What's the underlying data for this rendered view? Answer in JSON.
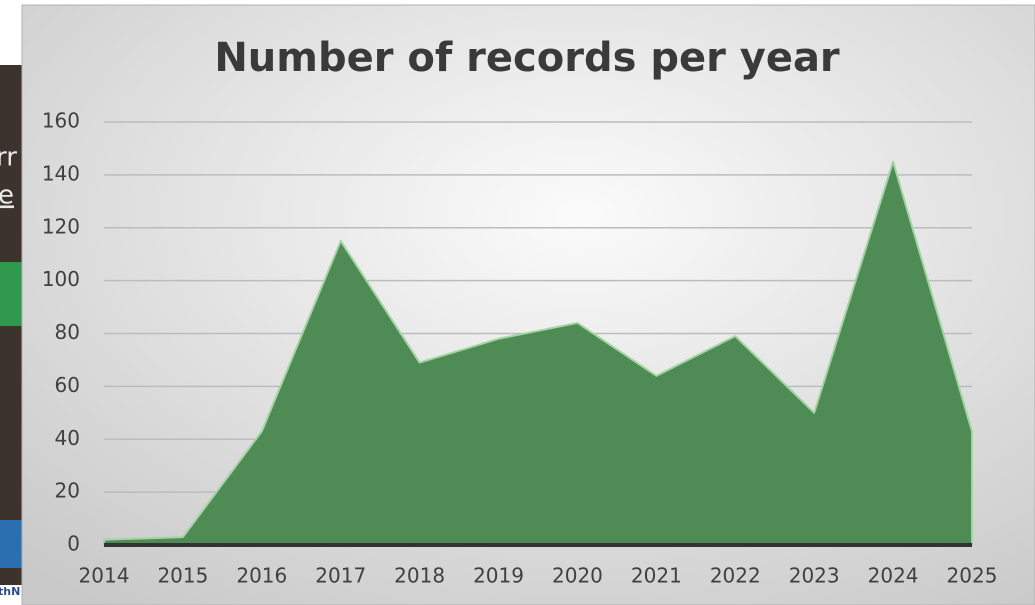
{
  "background": {
    "fragments": [
      "rr",
      "e",
      "thN"
    ]
  },
  "chart_data": {
    "type": "area",
    "title": "Number of records per year",
    "x": [
      2014,
      2015,
      2016,
      2017,
      2018,
      2019,
      2020,
      2021,
      2022,
      2023,
      2024,
      2025
    ],
    "values": [
      2,
      3,
      43,
      115,
      69,
      78,
      84,
      64,
      79,
      50,
      145,
      43
    ],
    "color": "#4e8b55",
    "xlim": [
      2014,
      2025
    ],
    "xticks": [
      2014,
      2015,
      2016,
      2017,
      2018,
      2019,
      2020,
      2021,
      2022,
      2023,
      2024,
      2025
    ],
    "ylim": [
      0,
      160
    ],
    "yticks": [
      0,
      20,
      40,
      60,
      80,
      100,
      120,
      140,
      160
    ],
    "grid": true
  }
}
